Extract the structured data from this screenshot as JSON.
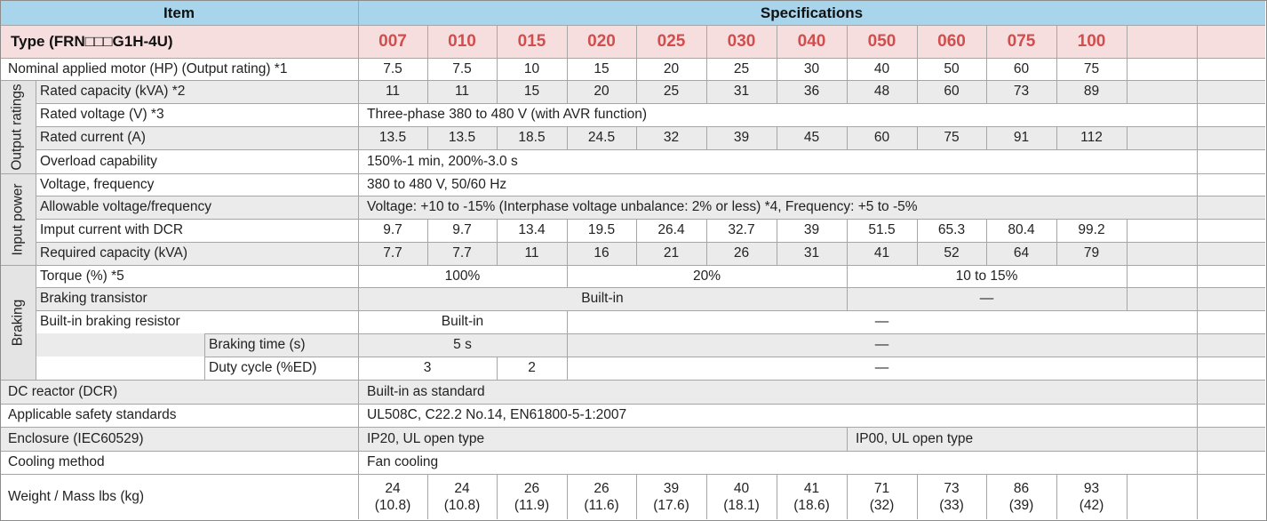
{
  "header": {
    "item": "Item",
    "specifications": "Specifications"
  },
  "type_label": "Type (FRN□□□G1H-4U)",
  "models": [
    "007",
    "010",
    "015",
    "020",
    "025",
    "030",
    "040",
    "050",
    "060",
    "075",
    "100"
  ],
  "rows": {
    "nominal_motor": {
      "label": "Nominal applied motor (HP) (Output rating) *1",
      "values": [
        "7.5",
        "7.5",
        "10",
        "15",
        "20",
        "25",
        "30",
        "40",
        "50",
        "60",
        "75"
      ]
    },
    "rated_capacity": {
      "label": "Rated capacity (kVA) *2",
      "values": [
        "11",
        "11",
        "15",
        "20",
        "25",
        "31",
        "36",
        "48",
        "60",
        "73",
        "89"
      ]
    },
    "rated_voltage": {
      "label": "Rated voltage (V) *3",
      "value": "Three-phase 380 to 480 V (with AVR function)"
    },
    "rated_current": {
      "label": "Rated current (A)",
      "values": [
        "13.5",
        "13.5",
        "18.5",
        "24.5",
        "32",
        "39",
        "45",
        "60",
        "75",
        "91",
        "112"
      ]
    },
    "overload": {
      "label": "Overload capability",
      "value": "150%-1 min, 200%-3.0 s"
    },
    "voltage_freq": {
      "label": "Voltage, frequency",
      "value": "380 to 480 V, 50/60 Hz"
    },
    "allowable": {
      "label": "Allowable voltage/frequency",
      "value": "Voltage: +10 to -15% (Interphase voltage unbalance: 2% or less) *4, Frequency: +5 to -5%"
    },
    "input_current": {
      "label": "Imput current with DCR",
      "values": [
        "9.7",
        "9.7",
        "13.4",
        "19.5",
        "26.4",
        "32.7",
        "39",
        "51.5",
        "65.3",
        "80.4",
        "99.2"
      ]
    },
    "required_capacity": {
      "label": "Required capacity (kVA)",
      "values": [
        "7.7",
        "7.7",
        "11",
        "16",
        "21",
        "26",
        "31",
        "41",
        "52",
        "64",
        "79"
      ]
    },
    "torque": {
      "label": "Torque (%) *5",
      "values": [
        "100%",
        "20%",
        "10 to 15%"
      ]
    },
    "braking_transistor": {
      "label": "Braking transistor",
      "values": [
        "Built-in",
        "—"
      ]
    },
    "braking_resistor": {
      "label": "Built-in braking resistor",
      "values": [
        "Built-in",
        "—"
      ]
    },
    "braking_time": {
      "label": "Braking time (s)",
      "values": [
        "5 s",
        "—"
      ]
    },
    "duty_cycle": {
      "label": "Duty cycle (%ED)",
      "values": [
        "3",
        "2",
        "—"
      ]
    },
    "dc_reactor": {
      "label": "DC reactor (DCR)",
      "value": "Built-in as standard"
    },
    "safety": {
      "label": "Applicable safety standards",
      "value": "UL508C, C22.2 No.14, EN61800-5-1:2007"
    },
    "enclosure": {
      "label": "Enclosure (IEC60529)",
      "values": [
        "IP20, UL open type",
        "IP00, UL open type"
      ]
    },
    "cooling": {
      "label": "Cooling method",
      "value": "Fan cooling"
    },
    "weight": {
      "label": "Weight / Mass lbs (kg)",
      "lbs": [
        "24",
        "24",
        "26",
        "26",
        "39",
        "40",
        "41",
        "71",
        "73",
        "86",
        "93"
      ],
      "kg": [
        "(10.8)",
        "(10.8)",
        "(11.9)",
        "(11.6)",
        "(17.6)",
        "(18.1)",
        "(18.6)",
        "(32)",
        "(33)",
        "(39)",
        "(42)"
      ]
    }
  },
  "groups": {
    "output": "Output ratings",
    "input": "Input power",
    "braking": "Braking"
  },
  "colors": {
    "header_bg": "#a8d5ec",
    "type_bg": "#f7dede",
    "model_text": "#d24d4d",
    "shaded_row": "#ebebeb"
  }
}
